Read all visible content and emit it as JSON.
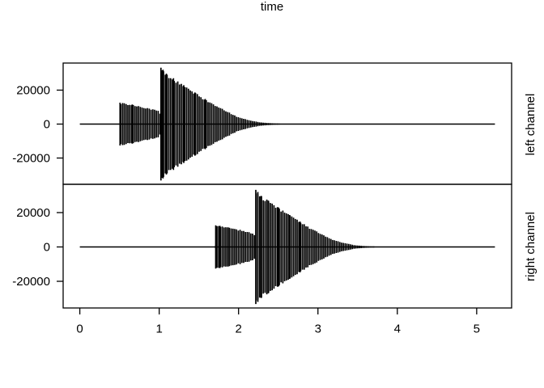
{
  "meta": {
    "background_color": "#ffffff",
    "ink_color": "#000000",
    "description": "R-style oscillogram plot of a stereo Wave object: two stacked panels sharing a time axis"
  },
  "chart_data": {
    "type": "line",
    "subtype": "audio-waveform-oscillogram",
    "title": "",
    "xlabel": "time",
    "ylabel": "",
    "grid": false,
    "legend": "none",
    "x_tick_values": [
      0,
      1,
      2,
      3,
      4,
      5
    ],
    "x_tick_labels": [
      "0",
      "1",
      "2",
      "3",
      "4",
      "5"
    ],
    "y_tick_values": [
      -20000,
      0,
      20000
    ],
    "y_tick_labels": [
      "-20000",
      "0",
      "20000"
    ],
    "xlim": [
      -0.21,
      5.44
    ],
    "ylim_per_panel": [
      -35700,
      35700
    ],
    "duration_seconds": 5.23,
    "panels": [
      {
        "label": "left channel",
        "zero_line": true,
        "envelope": [
          [
            0.0,
            0
          ],
          [
            0.5,
            0
          ],
          [
            0.507,
            12600
          ],
          [
            0.56,
            12300
          ],
          [
            0.66,
            11500
          ],
          [
            0.76,
            10600
          ],
          [
            0.86,
            9500
          ],
          [
            0.96,
            8400
          ],
          [
            1.0,
            7800
          ],
          [
            1.012,
            6000
          ],
          [
            1.022,
            33200
          ],
          [
            1.048,
            32000
          ],
          [
            1.09,
            29700
          ],
          [
            1.18,
            27000
          ],
          [
            1.31,
            22900
          ],
          [
            1.45,
            18600
          ],
          [
            1.58,
            14800
          ],
          [
            1.71,
            11000
          ],
          [
            1.85,
            7700
          ],
          [
            1.98,
            4400
          ],
          [
            2.12,
            2500
          ],
          [
            2.26,
            1100
          ],
          [
            2.4,
            520
          ],
          [
            2.53,
            270
          ],
          [
            2.68,
            130
          ],
          [
            2.9,
            0
          ],
          [
            5.23,
            0
          ]
        ]
      },
      {
        "label": "right channel",
        "zero_line": true,
        "envelope": [
          [
            0.0,
            0
          ],
          [
            1.705,
            0
          ],
          [
            1.712,
            12600
          ],
          [
            1.765,
            12300
          ],
          [
            1.865,
            11500
          ],
          [
            1.965,
            10600
          ],
          [
            2.065,
            9500
          ],
          [
            2.15,
            8400
          ],
          [
            2.195,
            7800
          ],
          [
            2.207,
            6000
          ],
          [
            2.217,
            33200
          ],
          [
            2.243,
            32000
          ],
          [
            2.285,
            29700
          ],
          [
            2.375,
            27000
          ],
          [
            2.505,
            22900
          ],
          [
            2.645,
            18600
          ],
          [
            2.775,
            14800
          ],
          [
            2.905,
            11000
          ],
          [
            3.045,
            7700
          ],
          [
            3.175,
            4400
          ],
          [
            3.315,
            2500
          ],
          [
            3.455,
            1100
          ],
          [
            3.595,
            520
          ],
          [
            3.725,
            270
          ],
          [
            3.875,
            130
          ],
          [
            4.1,
            0
          ],
          [
            5.23,
            0
          ]
        ]
      }
    ]
  }
}
